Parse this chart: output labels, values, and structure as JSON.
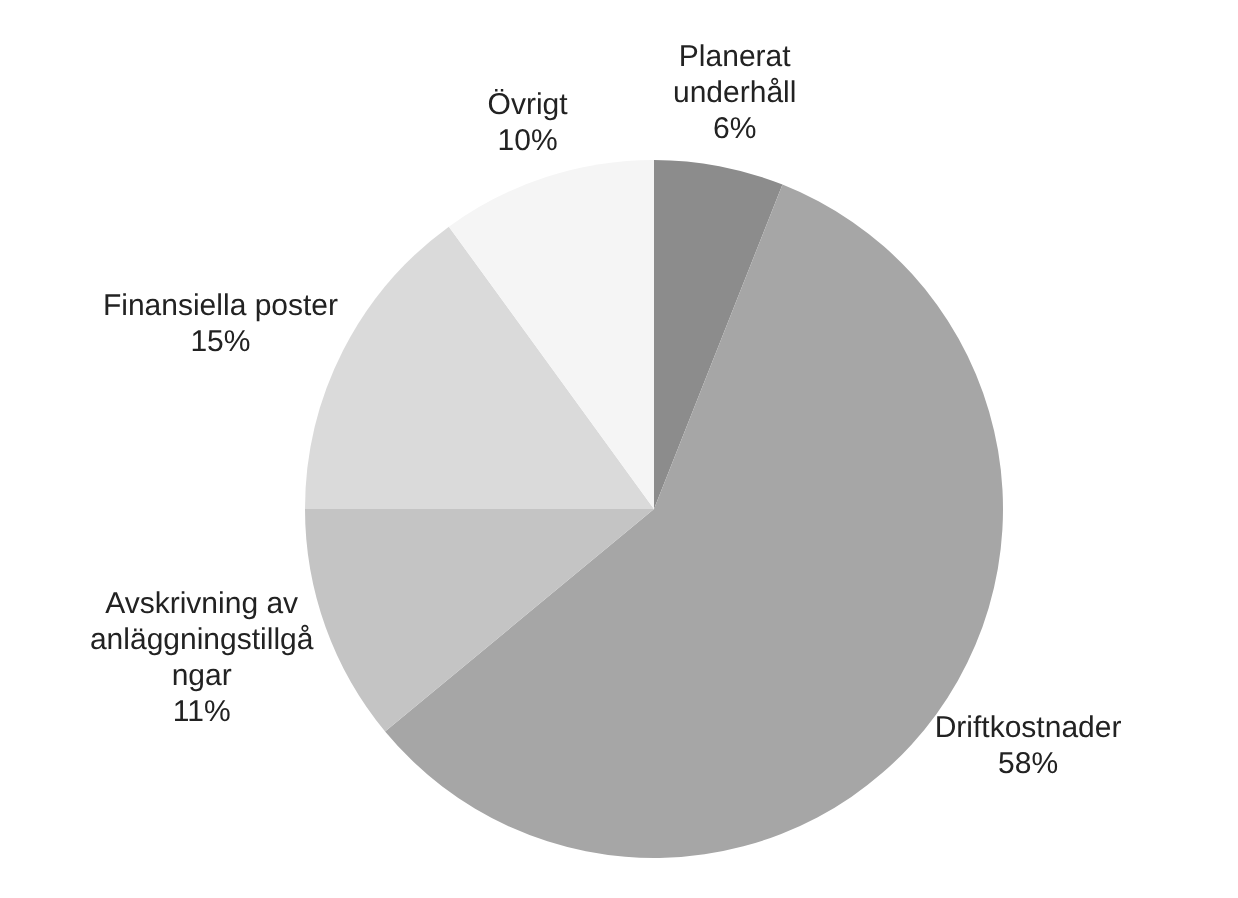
{
  "chart_data": {
    "type": "pie",
    "categories": [
      "Planerat underhåll",
      "Driftkostnader",
      "Avskrivning av anläggningstillgångar",
      "Finansiella poster",
      "Övrigt"
    ],
    "values": [
      6,
      58,
      11,
      15,
      10
    ],
    "colors": [
      "#8c8c8c",
      "#a6a6a6",
      "#c4c4c4",
      "#dadada",
      "#f5f5f5"
    ],
    "value_labels": [
      "6%",
      "58%",
      "11%",
      "15%",
      "10%"
    ],
    "legend": false
  }
}
